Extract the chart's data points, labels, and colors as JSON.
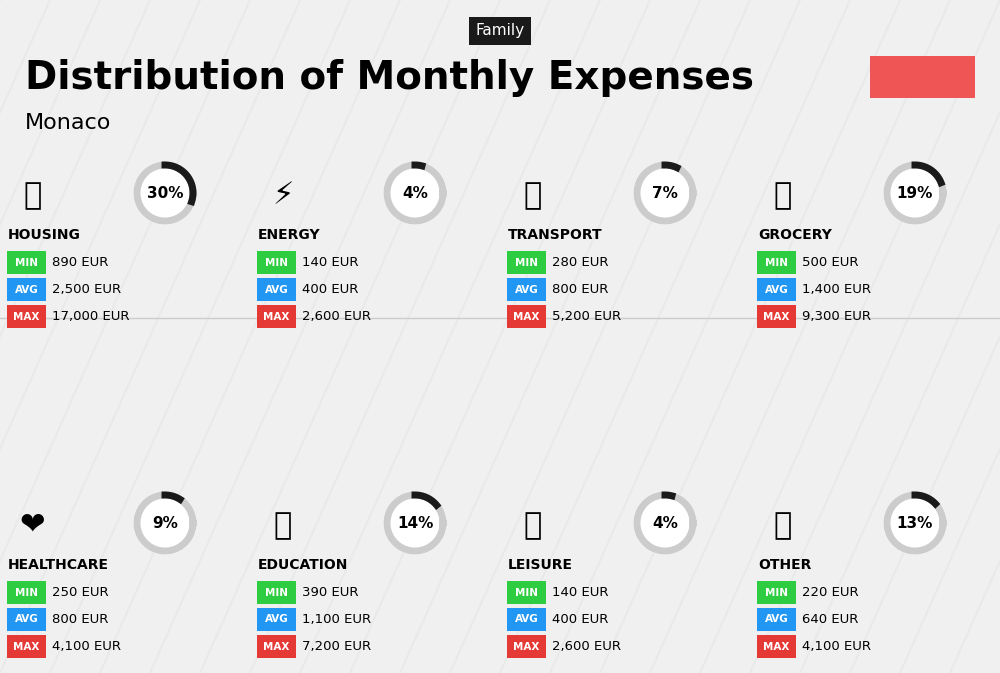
{
  "title": "Distribution of Monthly Expenses",
  "subtitle": "Monaco",
  "tag": "Family",
  "bg_color": "#f0f0f0",
  "tag_bg": "#1a1a1a",
  "tag_color": "#ffffff",
  "pink_rect": "#f05555",
  "categories": [
    {
      "name": "HOUSING",
      "pct": 30,
      "min": "890 EUR",
      "avg": "2,500 EUR",
      "max": "17,000 EUR",
      "row": 0,
      "col": 0
    },
    {
      "name": "ENERGY",
      "pct": 4,
      "min": "140 EUR",
      "avg": "400 EUR",
      "max": "2,600 EUR",
      "row": 0,
      "col": 1
    },
    {
      "name": "TRANSPORT",
      "pct": 7,
      "min": "280 EUR",
      "avg": "800 EUR",
      "max": "5,200 EUR",
      "row": 0,
      "col": 2
    },
    {
      "name": "GROCERY",
      "pct": 19,
      "min": "500 EUR",
      "avg": "1,400 EUR",
      "max": "9,300 EUR",
      "row": 0,
      "col": 3
    },
    {
      "name": "HEALTHCARE",
      "pct": 9,
      "min": "250 EUR",
      "avg": "800 EUR",
      "max": "4,100 EUR",
      "row": 1,
      "col": 0
    },
    {
      "name": "EDUCATION",
      "pct": 14,
      "min": "390 EUR",
      "avg": "1,100 EUR",
      "max": "7,200 EUR",
      "row": 1,
      "col": 1
    },
    {
      "name": "LEISURE",
      "pct": 4,
      "min": "140 EUR",
      "avg": "400 EUR",
      "max": "2,600 EUR",
      "row": 1,
      "col": 2
    },
    {
      "name": "OTHER",
      "pct": 13,
      "min": "220 EUR",
      "avg": "640 EUR",
      "max": "4,100 EUR",
      "row": 1,
      "col": 3
    }
  ],
  "color_min": "#2ecc40",
  "color_avg": "#2196f3",
  "color_max": "#e53935",
  "circle_color": "#333333",
  "circle_bg": "#ffffff",
  "label_color": "#ffffff",
  "value_color": "#000000"
}
